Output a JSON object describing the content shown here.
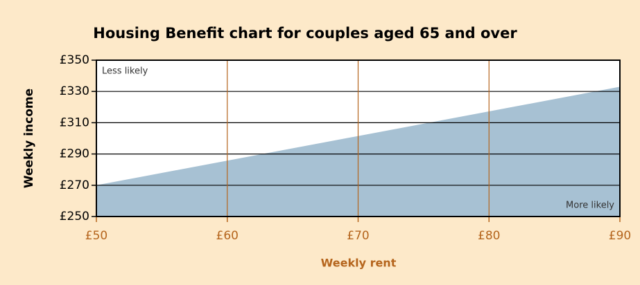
{
  "chart_data": {
    "type": "area",
    "title": "Housing Benefit chart for couples aged 65 and over",
    "xlabel": "Weekly rent",
    "ylabel": "Weekly income",
    "x": [
      50,
      90
    ],
    "values": [
      270,
      333
    ],
    "color": "#a7c1d3",
    "xlim": [
      50,
      90
    ],
    "xticks": [
      {
        "value": 50,
        "label": "£50"
      },
      {
        "value": 60,
        "label": "£60"
      },
      {
        "value": 70,
        "label": "£70"
      },
      {
        "value": 80,
        "label": "£80"
      },
      {
        "value": 90,
        "label": "£90"
      }
    ],
    "ylim": [
      250,
      350
    ],
    "yticks": [
      {
        "value": 250,
        "label": "£250"
      },
      {
        "value": 270,
        "label": "£270"
      },
      {
        "value": 290,
        "label": "£290"
      },
      {
        "value": 310,
        "label": "£310"
      },
      {
        "value": 330,
        "label": "£330"
      },
      {
        "value": 350,
        "label": "£350"
      }
    ],
    "grid": true,
    "xgrid_color": "#b5651d",
    "ygrid_color": "#000000",
    "annotations": [
      "Less likely",
      "More likely"
    ]
  }
}
